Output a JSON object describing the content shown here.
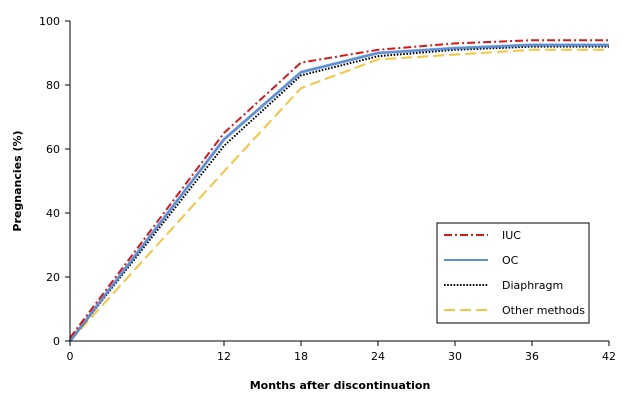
{
  "chart_data": {
    "type": "line",
    "title": "",
    "xlabel": "Months after discontinuation",
    "ylabel": "Pregnancies (%)",
    "xlim": [
      0,
      42
    ],
    "ylim": [
      0,
      100
    ],
    "x_ticks": [
      "0",
      "12",
      "18",
      "24",
      "30",
      "36",
      "42"
    ],
    "y_ticks": [
      "0",
      "20",
      "40",
      "60",
      "80",
      "100"
    ],
    "grid": false,
    "legend_position": "bottom-right",
    "series": [
      {
        "name": "IUC",
        "color": "#d7191c",
        "dash": "dash-dot",
        "x": [
          0,
          12,
          18,
          24,
          30,
          36,
          42
        ],
        "y": [
          1,
          65,
          87,
          91,
          93,
          94,
          94
        ]
      },
      {
        "name": "OC",
        "color": "#5b8fd6",
        "dash": "solid",
        "x": [
          0,
          12,
          18,
          24,
          30,
          36,
          42
        ],
        "y": [
          0,
          63,
          84,
          90,
          91.5,
          92.5,
          92.5
        ]
      },
      {
        "name": "Diaphragm",
        "color": "#000000",
        "dash": "dotted",
        "x": [
          0,
          12,
          18,
          24,
          30,
          36,
          42
        ],
        "y": [
          0,
          61,
          83,
          89,
          91,
          92,
          92
        ]
      },
      {
        "name": "Other methods",
        "color": "#f5c542",
        "dash": "dashed",
        "x": [
          0,
          12,
          18,
          24,
          30,
          36,
          42
        ],
        "y": [
          0,
          53,
          79,
          88,
          89.5,
          91,
          91
        ]
      }
    ]
  }
}
